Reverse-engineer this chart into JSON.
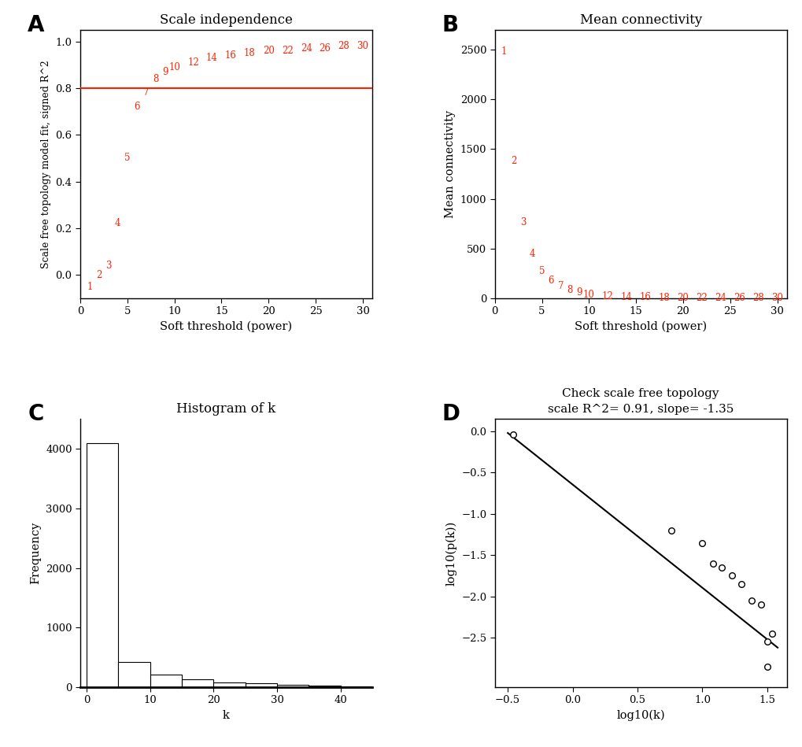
{
  "panel_A": {
    "title": "Scale independence",
    "xlabel": "Soft threshold (power)",
    "ylabel": "Scale free topology model fit, signed R^2",
    "powers": [
      1,
      2,
      3,
      4,
      5,
      6,
      7,
      8,
      9,
      10,
      12,
      14,
      16,
      18,
      20,
      22,
      24,
      26,
      28,
      30
    ],
    "sft_values": [
      -0.05,
      0.0,
      0.04,
      0.22,
      0.5,
      0.72,
      0.78,
      0.84,
      0.87,
      0.89,
      0.91,
      0.93,
      0.94,
      0.95,
      0.96,
      0.96,
      0.97,
      0.97,
      0.98,
      0.98
    ],
    "hline": 0.8,
    "xlim": [
      0,
      31
    ],
    "ylim": [
      -0.1,
      1.05
    ],
    "yticks": [
      0.0,
      0.2,
      0.4,
      0.6,
      0.8,
      1.0
    ],
    "xticks": [
      0,
      5,
      10,
      15,
      20,
      25,
      30
    ],
    "text_color": "#FF2200",
    "hline_color": "#FF2200"
  },
  "panel_B": {
    "title": "Mean connectivity",
    "xlabel": "Soft threshold (power)",
    "ylabel": "Mean connectivity",
    "powers": [
      1,
      2,
      3,
      4,
      5,
      6,
      7,
      8,
      9,
      10,
      12,
      14,
      16,
      18,
      20,
      22,
      24,
      26,
      28,
      30
    ],
    "mean_conn": [
      2480,
      1380,
      760,
      450,
      270,
      175,
      120,
      80,
      55,
      38,
      20,
      12,
      8,
      5,
      4,
      3,
      2,
      2,
      1,
      1
    ],
    "xlim": [
      0,
      31
    ],
    "ylim": [
      0,
      2700
    ],
    "yticks": [
      0,
      500,
      1000,
      1500,
      2000,
      2500
    ],
    "xticks": [
      0,
      5,
      10,
      15,
      20,
      25,
      30
    ],
    "text_color": "#FF2200"
  },
  "panel_C": {
    "title": "Histogram of k",
    "xlabel": "k",
    "ylabel": "Frequency",
    "bar_edges": [
      0,
      5,
      10,
      15,
      20,
      25,
      30,
      35,
      40,
      45
    ],
    "bar_heights": [
      4100,
      420,
      210,
      130,
      80,
      65,
      45,
      25,
      20
    ],
    "xlim": [
      -1,
      45
    ],
    "ylim": [
      0,
      4500
    ],
    "xticks": [
      0,
      10,
      20,
      30,
      40
    ],
    "yticks": [
      0,
      1000,
      2000,
      3000,
      4000
    ]
  },
  "panel_D": {
    "title": "Check scale free topology\nscale R^2= 0.91, slope= -1.35",
    "xlabel": "log10(k)",
    "ylabel": "log10(p(k))",
    "x_points": [
      -0.46,
      0.76,
      1.0,
      1.08,
      1.15,
      1.23,
      1.3,
      1.38,
      1.45,
      1.5,
      1.54
    ],
    "y_points": [
      -0.04,
      -1.2,
      -1.35,
      -1.6,
      -1.65,
      -1.75,
      -1.85,
      -2.05,
      -2.1,
      -2.55,
      -2.45
    ],
    "extra_point_x": 1.5,
    "extra_point_y": -2.85,
    "line_x": [
      -0.5,
      1.58
    ],
    "line_y": [
      -0.02,
      -2.62
    ],
    "xlim": [
      -0.6,
      1.65
    ],
    "ylim": [
      -3.1,
      0.15
    ],
    "xticks": [
      -0.5,
      0.0,
      0.5,
      1.0,
      1.5
    ],
    "yticks": [
      0.0,
      -0.5,
      -1.0,
      -1.5,
      -2.0,
      -2.5
    ]
  },
  "red_color": "#FF2200"
}
